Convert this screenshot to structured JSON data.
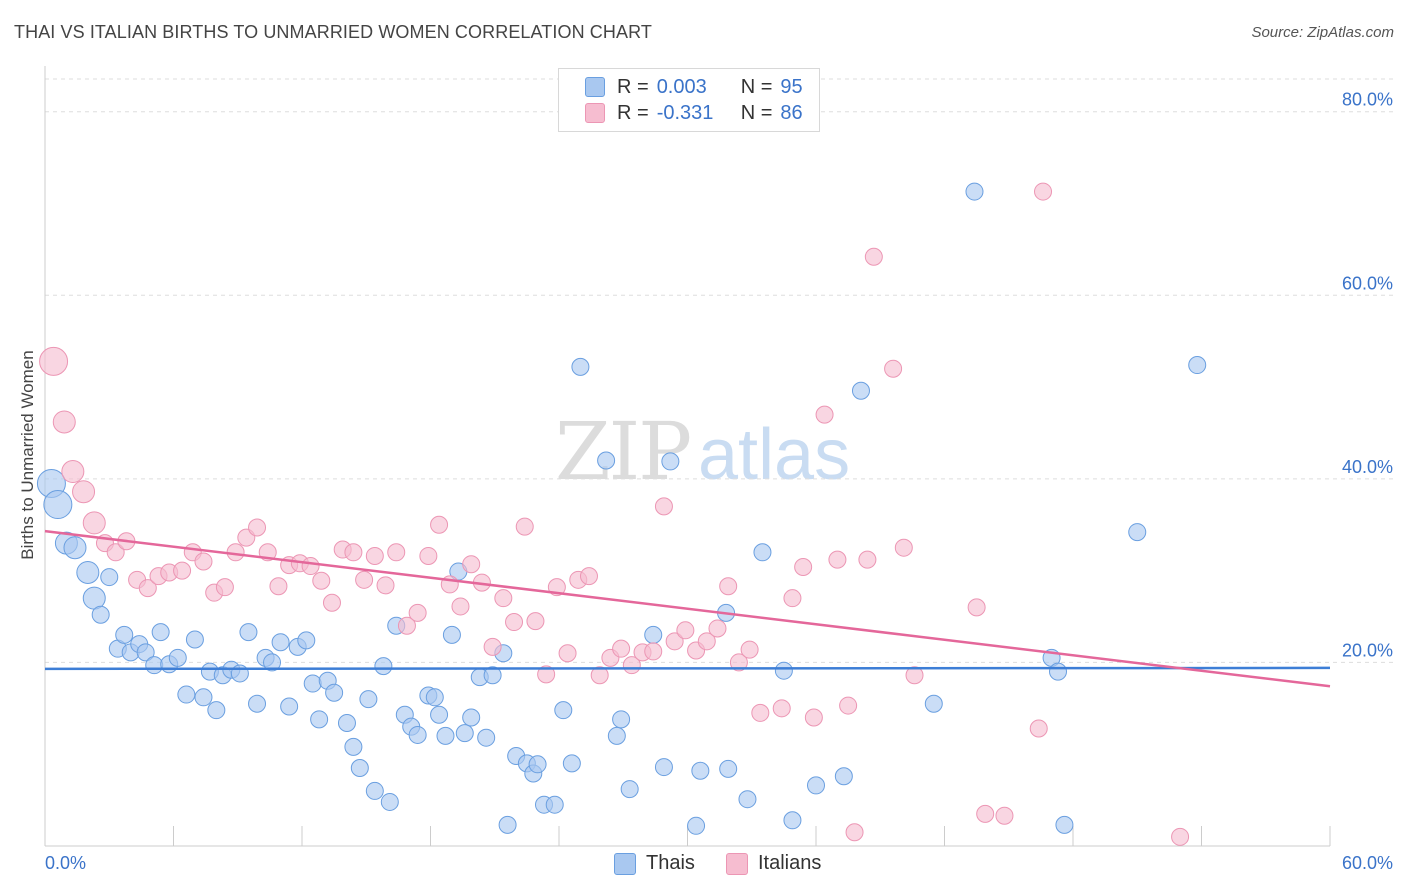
{
  "header": {
    "title": "THAI VS ITALIAN BIRTHS TO UNMARRIED WOMEN CORRELATION CHART",
    "source": "Source: ZipAtlas.com"
  },
  "watermark": {
    "zip": "ZIP",
    "atlas": "atlas"
  },
  "legend_top": {
    "thais": {
      "r_label": "R =",
      "r_value": "0.003",
      "n_label": "N =",
      "n_value": "95"
    },
    "italians": {
      "r_label": "R =",
      "r_value": "-0.331",
      "n_label": "N =",
      "n_value": "86"
    }
  },
  "legend_bottom": {
    "thais": "Thais",
    "italians": "Italians"
  },
  "colors": {
    "thais_fill": "#a9c8f0",
    "thais_stroke": "#6a9fe0",
    "thais_line": "#3d7ed6",
    "italians_fill": "#f6bdd0",
    "italians_stroke": "#ec96b4",
    "italians_line": "#e4679a",
    "axis_text": "#3a73c9",
    "grid": "#dddddd"
  },
  "chart_data": {
    "type": "scatter",
    "title": "THAI VS ITALIAN BIRTHS TO UNMARRIED WOMEN CORRELATION CHART",
    "xlabel": "",
    "ylabel": "Births to Unmarried Women",
    "xlim": [
      0,
      60
    ],
    "ylim": [
      0,
      84
    ],
    "x_ticks": [
      "0.0%",
      "60.0%"
    ],
    "y_ticks": [
      {
        "value": 20,
        "label": "20.0%"
      },
      {
        "value": 40,
        "label": "40.0%"
      },
      {
        "value": 60,
        "label": "60.0%"
      },
      {
        "value": 80,
        "label": "80.0%"
      }
    ],
    "grid": true,
    "legend_position": "top-center",
    "series": [
      {
        "name": "Thais",
        "r": 0.003,
        "n": 95,
        "trend": [
          [
            0,
            19.3
          ],
          [
            60,
            19.4
          ]
        ],
        "points": [
          [
            0.3,
            39.5
          ],
          [
            0.6,
            37.2
          ],
          [
            1.0,
            33.0
          ],
          [
            1.4,
            32.5
          ],
          [
            2.0,
            29.8
          ],
          [
            2.3,
            27.0
          ],
          [
            2.6,
            25.2
          ],
          [
            3.0,
            29.3
          ],
          [
            3.4,
            21.5
          ],
          [
            3.7,
            23.0
          ],
          [
            4.0,
            21.1
          ],
          [
            4.4,
            22.0
          ],
          [
            4.7,
            21.1
          ],
          [
            5.1,
            19.7
          ],
          [
            5.4,
            23.3
          ],
          [
            5.8,
            19.8
          ],
          [
            6.2,
            20.5
          ],
          [
            6.6,
            16.5
          ],
          [
            7.0,
            22.5
          ],
          [
            7.4,
            16.2
          ],
          [
            7.7,
            19.0
          ],
          [
            8.0,
            14.8
          ],
          [
            8.3,
            18.6
          ],
          [
            8.7,
            19.2
          ],
          [
            9.1,
            18.8
          ],
          [
            9.5,
            23.3
          ],
          [
            9.9,
            15.5
          ],
          [
            10.3,
            20.5
          ],
          [
            10.6,
            20.0
          ],
          [
            11.0,
            22.2
          ],
          [
            11.4,
            15.2
          ],
          [
            11.8,
            21.7
          ],
          [
            12.2,
            22.4
          ],
          [
            12.5,
            17.7
          ],
          [
            12.8,
            13.8
          ],
          [
            13.2,
            18.0
          ],
          [
            13.5,
            16.7
          ],
          [
            14.1,
            13.4
          ],
          [
            14.4,
            10.8
          ],
          [
            14.7,
            8.5
          ],
          [
            15.1,
            16.0
          ],
          [
            15.4,
            6.0
          ],
          [
            15.8,
            19.6
          ],
          [
            16.1,
            4.8
          ],
          [
            16.4,
            24.0
          ],
          [
            16.8,
            14.3
          ],
          [
            17.1,
            13.0
          ],
          [
            17.4,
            12.1
          ],
          [
            17.9,
            16.4
          ],
          [
            18.2,
            16.2
          ],
          [
            18.4,
            14.3
          ],
          [
            18.7,
            12.0
          ],
          [
            19.0,
            23.0
          ],
          [
            19.3,
            29.9
          ],
          [
            19.6,
            12.3
          ],
          [
            19.9,
            14.0
          ],
          [
            20.3,
            18.4
          ],
          [
            20.6,
            11.8
          ],
          [
            20.9,
            18.6
          ],
          [
            21.4,
            21.0
          ],
          [
            21.6,
            2.3
          ],
          [
            22.0,
            9.8
          ],
          [
            22.5,
            9.0
          ],
          [
            22.8,
            7.9
          ],
          [
            23.0,
            8.9
          ],
          [
            23.3,
            4.5
          ],
          [
            23.8,
            4.5
          ],
          [
            24.2,
            14.8
          ],
          [
            24.6,
            9.0
          ],
          [
            25.0,
            52.2
          ],
          [
            26.2,
            42.0
          ],
          [
            26.7,
            12.0
          ],
          [
            26.9,
            13.8
          ],
          [
            27.3,
            6.2
          ],
          [
            28.4,
            23.0
          ],
          [
            28.9,
            8.6
          ],
          [
            29.2,
            41.9
          ],
          [
            30.4,
            2.2
          ],
          [
            30.6,
            8.2
          ],
          [
            31.8,
            25.4
          ],
          [
            31.9,
            8.4
          ],
          [
            32.8,
            5.1
          ],
          [
            33.5,
            32.0
          ],
          [
            34.5,
            19.1
          ],
          [
            34.9,
            2.8
          ],
          [
            36.0,
            6.6
          ],
          [
            37.3,
            7.6
          ],
          [
            38.1,
            49.6
          ],
          [
            43.4,
            71.3
          ],
          [
            47.0,
            20.5
          ],
          [
            47.3,
            19.0
          ],
          [
            47.6,
            2.3
          ],
          [
            51.0,
            34.2
          ],
          [
            53.8,
            52.4
          ],
          [
            41.5,
            15.5
          ]
        ]
      },
      {
        "name": "Italians",
        "r": -0.331,
        "n": 86,
        "trend": [
          [
            0,
            34.3
          ],
          [
            60,
            17.4
          ]
        ],
        "points": [
          [
            0.4,
            52.8
          ],
          [
            0.9,
            46.2
          ],
          [
            1.3,
            40.8
          ],
          [
            1.8,
            38.6
          ],
          [
            2.3,
            35.2
          ],
          [
            2.8,
            33.0
          ],
          [
            3.3,
            32.0
          ],
          [
            3.8,
            33.2
          ],
          [
            4.3,
            29.0
          ],
          [
            4.8,
            28.1
          ],
          [
            5.3,
            29.4
          ],
          [
            5.8,
            29.8
          ],
          [
            6.4,
            30.0
          ],
          [
            6.9,
            32.0
          ],
          [
            7.4,
            31.0
          ],
          [
            7.9,
            27.6
          ],
          [
            8.4,
            28.2
          ],
          [
            8.9,
            32.0
          ],
          [
            9.4,
            33.6
          ],
          [
            9.9,
            34.7
          ],
          [
            10.4,
            32.0
          ],
          [
            10.9,
            28.3
          ],
          [
            11.4,
            30.6
          ],
          [
            11.9,
            30.8
          ],
          [
            12.4,
            30.5
          ],
          [
            12.9,
            28.9
          ],
          [
            13.4,
            26.5
          ],
          [
            13.9,
            32.3
          ],
          [
            14.4,
            32.0
          ],
          [
            14.9,
            29.0
          ],
          [
            15.4,
            31.6
          ],
          [
            15.9,
            28.4
          ],
          [
            16.4,
            32.0
          ],
          [
            16.9,
            24.0
          ],
          [
            17.4,
            25.4
          ],
          [
            17.9,
            31.6
          ],
          [
            18.4,
            35.0
          ],
          [
            18.9,
            28.5
          ],
          [
            19.4,
            26.1
          ],
          [
            19.9,
            30.7
          ],
          [
            20.4,
            28.7
          ],
          [
            20.9,
            21.7
          ],
          [
            21.4,
            27.0
          ],
          [
            21.9,
            24.4
          ],
          [
            22.4,
            34.8
          ],
          [
            22.9,
            24.5
          ],
          [
            23.4,
            18.7
          ],
          [
            23.9,
            28.2
          ],
          [
            24.4,
            21.0
          ],
          [
            24.9,
            29.0
          ],
          [
            25.4,
            29.4
          ],
          [
            25.9,
            18.6
          ],
          [
            26.4,
            20.5
          ],
          [
            26.9,
            21.5
          ],
          [
            27.4,
            19.7
          ],
          [
            27.9,
            21.1
          ],
          [
            28.4,
            21.2
          ],
          [
            28.9,
            37.0
          ],
          [
            29.4,
            22.3
          ],
          [
            29.9,
            23.5
          ],
          [
            30.4,
            21.3
          ],
          [
            30.9,
            22.3
          ],
          [
            31.4,
            23.7
          ],
          [
            31.9,
            28.3
          ],
          [
            32.4,
            20.0
          ],
          [
            32.9,
            21.4
          ],
          [
            33.4,
            14.5
          ],
          [
            34.4,
            15.0
          ],
          [
            34.9,
            27.0
          ],
          [
            35.4,
            30.4
          ],
          [
            35.9,
            14.0
          ],
          [
            36.4,
            47.0
          ],
          [
            37.0,
            31.2
          ],
          [
            37.5,
            15.3
          ],
          [
            37.8,
            1.5
          ],
          [
            38.4,
            31.2
          ],
          [
            38.7,
            64.2
          ],
          [
            39.6,
            52.0
          ],
          [
            40.1,
            32.5
          ],
          [
            40.6,
            18.6
          ],
          [
            43.5,
            26.0
          ],
          [
            43.9,
            3.5
          ],
          [
            44.8,
            3.3
          ],
          [
            46.4,
            12.8
          ],
          [
            46.6,
            71.3
          ],
          [
            53.0,
            1.0
          ]
        ]
      }
    ]
  }
}
